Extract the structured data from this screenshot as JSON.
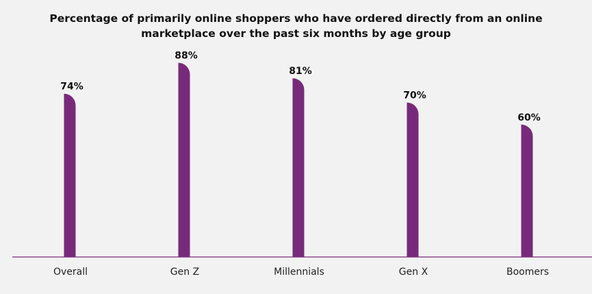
{
  "chart_data": {
    "type": "bar",
    "title": "Percentage of primarily online shoppers who have ordered directly from an online marketplace over the past six months by age group",
    "categories": [
      "Overall",
      "Gen Z",
      "Millennials",
      "Gen X",
      "Boomers"
    ],
    "values": [
      74,
      88,
      81,
      70,
      60
    ],
    "value_labels": [
      "74%",
      "88%",
      "81%",
      "70%",
      "60%"
    ],
    "xlabel": "",
    "ylabel": "",
    "ylim": [
      0,
      100
    ],
    "grid": false,
    "legend": "none",
    "colors": {
      "bar": "#782a7a",
      "axis": "#782a7a",
      "background": "#f2f2f2"
    }
  }
}
